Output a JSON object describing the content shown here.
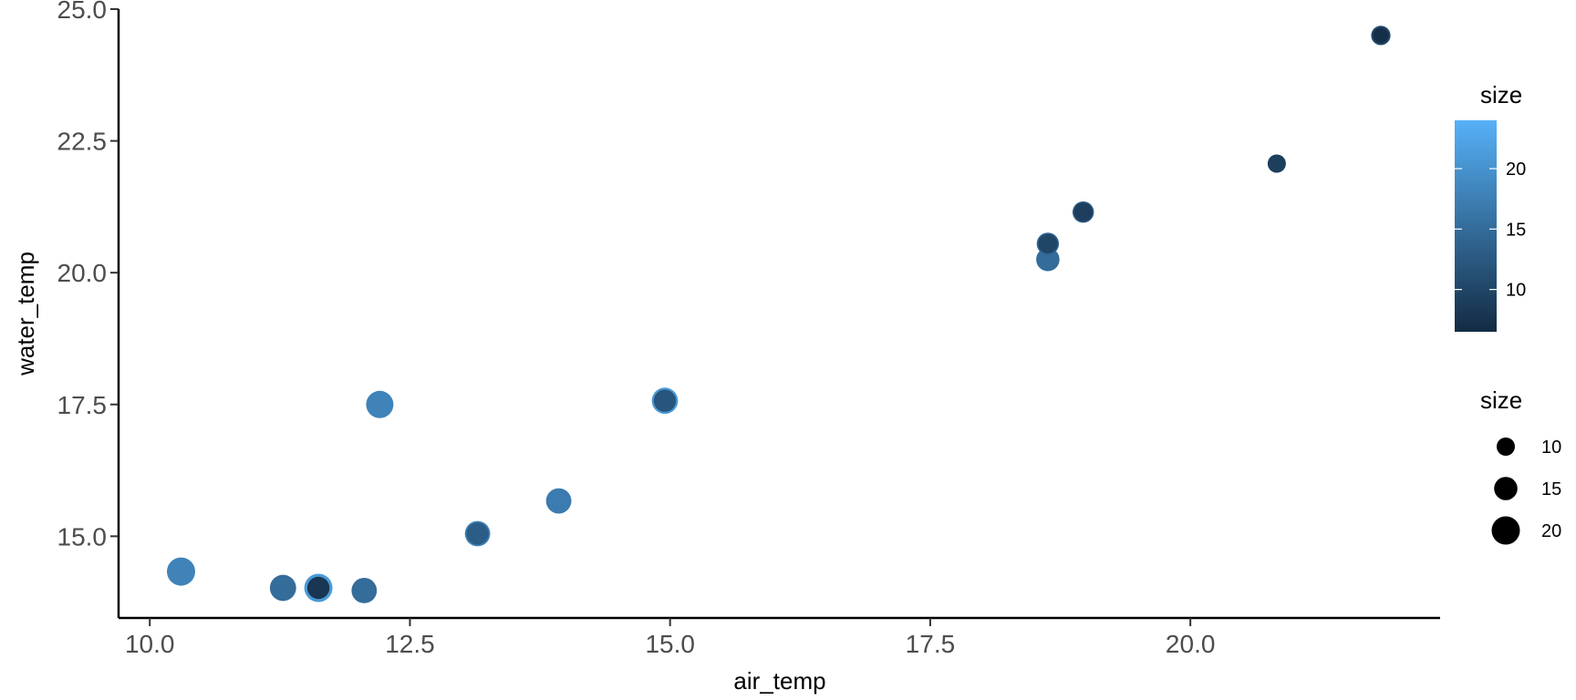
{
  "chart_data": {
    "type": "scatter",
    "title": "",
    "xlabel": "air_temp",
    "ylabel": "water_temp",
    "xlim": [
      9.7,
      22.4
    ],
    "ylim": [
      13.45,
      25.0
    ],
    "x_ticks": [
      10.0,
      12.5,
      15.0,
      17.5,
      20.0
    ],
    "x_tick_labels": [
      "10.0",
      "12.5",
      "15.0",
      "17.5",
      "20.0"
    ],
    "y_ticks": [
      15.0,
      17.5,
      20.0,
      22.5,
      25.0
    ],
    "y_tick_labels": [
      "15.0",
      "17.5",
      "20.0",
      "22.5",
      "25.0"
    ],
    "grid": false,
    "color_scale": {
      "low": "#132b43",
      "high": "#56b1f7",
      "range": [
        6.5,
        24
      ]
    },
    "legend": {
      "placement": "right",
      "color": {
        "title": "size",
        "breaks": [
          10,
          15,
          20
        ],
        "labels": [
          "10",
          "15",
          "20"
        ]
      },
      "size": {
        "title": "size",
        "breaks": [
          10,
          15,
          20
        ],
        "labels": [
          "10",
          "15",
          "20"
        ]
      }
    },
    "points": [
      {
        "x": 21.83,
        "y": 24.5,
        "size": 11,
        "color_value": 10
      },
      {
        "x": 21.83,
        "y": 24.5,
        "size": 7,
        "color_value": 7
      },
      {
        "x": 20.83,
        "y": 22.07,
        "size": 10,
        "color_value": 9
      },
      {
        "x": 18.97,
        "y": 21.15,
        "size": 13,
        "color_value": 12
      },
      {
        "x": 18.97,
        "y": 21.15,
        "size": 10,
        "color_value": 9
      },
      {
        "x": 18.63,
        "y": 20.25,
        "size": 15,
        "color_value": 15
      },
      {
        "x": 18.63,
        "y": 20.55,
        "size": 14,
        "color_value": 14
      },
      {
        "x": 18.63,
        "y": 20.55,
        "size": 11,
        "color_value": 10
      },
      {
        "x": 14.95,
        "y": 17.57,
        "size": 18,
        "color_value": 21
      },
      {
        "x": 14.95,
        "y": 17.57,
        "size": 14,
        "color_value": 12
      },
      {
        "x": 12.21,
        "y": 17.5,
        "size": 19,
        "color_value": 18
      },
      {
        "x": 13.93,
        "y": 15.67,
        "size": 17,
        "color_value": 17
      },
      {
        "x": 13.15,
        "y": 15.05,
        "size": 17,
        "color_value": 18
      },
      {
        "x": 13.15,
        "y": 15.05,
        "size": 14,
        "color_value": 13
      },
      {
        "x": 10.3,
        "y": 14.33,
        "size": 20,
        "color_value": 18
      },
      {
        "x": 11.28,
        "y": 14.02,
        "size": 18,
        "color_value": 15
      },
      {
        "x": 11.62,
        "y": 14.02,
        "size": 20,
        "color_value": 21
      },
      {
        "x": 11.62,
        "y": 14.02,
        "size": 14,
        "color_value": 8
      },
      {
        "x": 12.06,
        "y": 13.97,
        "size": 17,
        "color_value": 15
      }
    ]
  }
}
